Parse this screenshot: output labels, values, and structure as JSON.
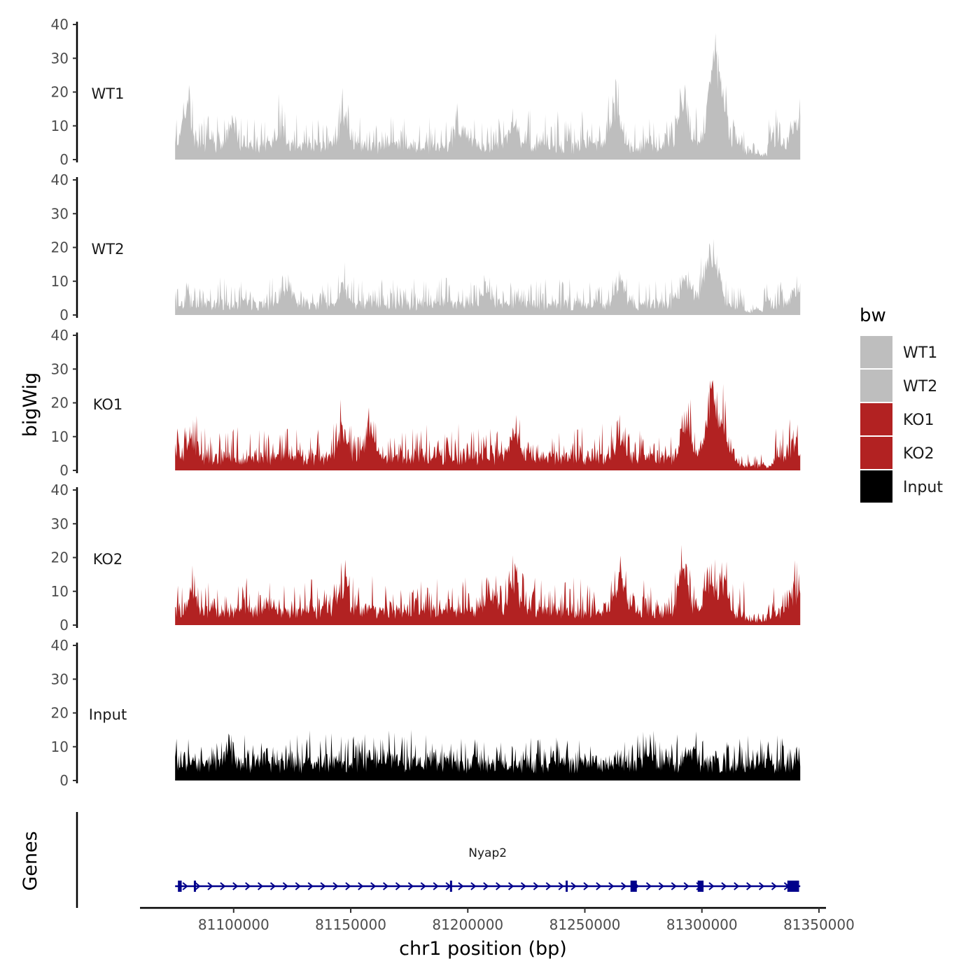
{
  "chart_data": {
    "type": "area",
    "ylabel": "bigWig",
    "xlabel": "chr1 position (bp)",
    "ylim": [
      0,
      40
    ],
    "yticks": [
      0,
      10,
      20,
      30,
      40
    ],
    "xlim": [
      81060000,
      81353000
    ],
    "xticks": [
      81100000,
      81150000,
      81200000,
      81250000,
      81300000,
      81350000
    ],
    "xtick_labels": [
      "81100000",
      "81150000",
      "81200000",
      "81250000",
      "81300000",
      "81350000"
    ],
    "region": [
      81075000,
      81342000
    ],
    "legend": {
      "title": "bw",
      "entries": [
        {
          "name": "WT1",
          "color": "#bebebe"
        },
        {
          "name": "WT2",
          "color": "#bebebe"
        },
        {
          "name": "KO1",
          "color": "#b22222"
        },
        {
          "name": "KO2",
          "color": "#b22222"
        },
        {
          "name": "Input",
          "color": "#000000"
        }
      ]
    },
    "series": [
      {
        "name": "WT1",
        "color": "#bebebe",
        "base": 4.5,
        "noise": 4.5,
        "peaks": [
          [
            81080000,
            9
          ],
          [
            81099000,
            7
          ],
          [
            81120000,
            6
          ],
          [
            81147000,
            7
          ],
          [
            81198000,
            6
          ],
          [
            81220000,
            7
          ],
          [
            81263000,
            12
          ],
          [
            81292000,
            15
          ],
          [
            81305000,
            30
          ],
          [
            81309000,
            12
          ],
          [
            81322000,
            2.5
          ],
          [
            81340000,
            8
          ]
        ],
        "dips": [
          [
            81318000,
            81328000
          ]
        ]
      },
      {
        "name": "WT2",
        "color": "#bebebe",
        "base": 3.5,
        "noise": 3.5,
        "peaks": [
          [
            81123000,
            6
          ],
          [
            81147000,
            5
          ],
          [
            81208000,
            4
          ],
          [
            81265000,
            7
          ],
          [
            81293000,
            9
          ],
          [
            81302000,
            12
          ],
          [
            81306000,
            11
          ],
          [
            81340000,
            4
          ]
        ],
        "dips": [
          [
            81318000,
            81326000
          ]
        ]
      },
      {
        "name": "KO1",
        "color": "#b22222",
        "base": 4.0,
        "noise": 4.5,
        "peaks": [
          [
            81082000,
            6
          ],
          [
            81147000,
            8
          ],
          [
            81158000,
            9
          ],
          [
            81220000,
            8
          ],
          [
            81265000,
            6
          ],
          [
            81293000,
            12
          ],
          [
            81304000,
            22
          ],
          [
            81309000,
            10
          ],
          [
            81340000,
            5
          ]
        ],
        "dips": [
          [
            81315000,
            81330000
          ]
        ]
      },
      {
        "name": "KO2",
        "color": "#b22222",
        "base": 4.5,
        "noise": 4.5,
        "peaks": [
          [
            81082000,
            6
          ],
          [
            81147000,
            6
          ],
          [
            81210000,
            6
          ],
          [
            81220000,
            9
          ],
          [
            81265000,
            10
          ],
          [
            81292000,
            14
          ],
          [
            81303000,
            11
          ],
          [
            81309000,
            10
          ],
          [
            81340000,
            6
          ]
        ],
        "dips": [
          [
            81318000,
            81328000
          ]
        ]
      },
      {
        "name": "Input",
        "color": "#000000",
        "base": 5.5,
        "noise": 4.0,
        "peaks": [
          [
            81098000,
            4
          ],
          [
            81277000,
            3
          ],
          [
            81295000,
            3
          ]
        ],
        "dips": []
      }
    ],
    "genes": {
      "label": "Genes",
      "color": "#00008b",
      "transcripts": [
        {
          "name": "Nyap2",
          "strand": "+",
          "start": 81075000,
          "end": 81342000,
          "exons": [
            [
              81076200,
              81077800
            ],
            [
              81083000,
              81083700
            ],
            [
              81192400,
              81193000
            ],
            [
              81241800,
              81242600
            ],
            [
              81269500,
              81272200
            ],
            [
              81298200,
              81300700
            ],
            [
              81336500,
              81341500
            ]
          ]
        }
      ]
    }
  }
}
